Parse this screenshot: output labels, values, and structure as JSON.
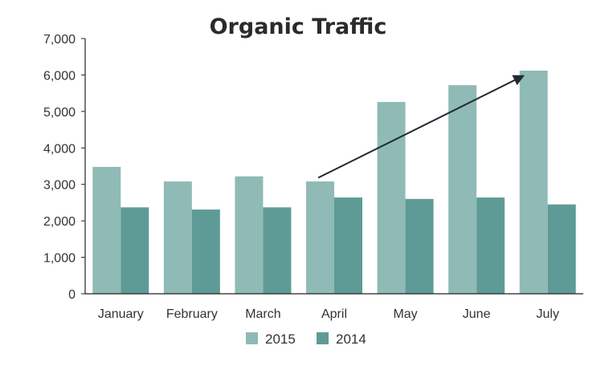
{
  "chart_data": {
    "type": "bar",
    "title": "Organic Traffic",
    "xlabel": "",
    "ylabel": "",
    "categories": [
      "January",
      "February",
      "March",
      "April",
      "May",
      "June",
      "July"
    ],
    "series": [
      {
        "name": "2015",
        "values": [
          3480,
          3080,
          3220,
          3080,
          5260,
          5720,
          6120
        ],
        "color": "#90bab6"
      },
      {
        "name": "2014",
        "values": [
          2370,
          2310,
          2370,
          2640,
          2600,
          2640,
          2450
        ],
        "color": "#5f9b96"
      }
    ],
    "ylim": [
      0,
      7000
    ],
    "yticks": [
      0,
      1000,
      2000,
      3000,
      4000,
      5000,
      6000,
      7000
    ],
    "ytick_labels": [
      "0",
      "1,000",
      "2,000",
      "3,000",
      "4,000",
      "5,000",
      "6,000",
      "7,000"
    ],
    "grid": false,
    "legend": "bottom",
    "annotations": [
      {
        "type": "arrow",
        "from": {
          "x": "April",
          "y": 3180
        },
        "to": {
          "x": "July",
          "y": 5980
        },
        "color": "#1f2a33"
      }
    ]
  }
}
